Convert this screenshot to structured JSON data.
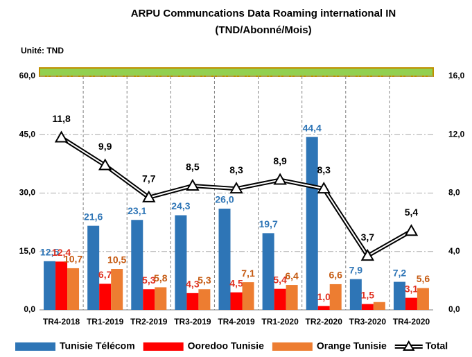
{
  "chart_data": {
    "type": "bar",
    "title": "ARPU Communcations Data  Roaming international IN",
    "subtitle": "(TND/Abonné/Mois)",
    "unit_label": "Unité: TND",
    "categories": [
      "TR4-2018",
      "TR1-2019",
      "TR2-2019",
      "TR3-2019",
      "TR4-2019",
      "TR1-2020",
      "TR2-2020",
      "TR3-2020",
      "TR4-2020"
    ],
    "ylim": [
      0,
      60
    ],
    "yticks": [
      {
        "value": 0,
        "label": "0,0"
      },
      {
        "value": 15,
        "label": "15,0"
      },
      {
        "value": 30,
        "label": "30,0"
      },
      {
        "value": 45,
        "label": "45,0"
      },
      {
        "value": 60,
        "label": "60,0"
      }
    ],
    "y2lim": [
      0,
      16
    ],
    "y2ticks": [
      {
        "value": 0,
        "label": "0,0"
      },
      {
        "value": 4,
        "label": "4,0"
      },
      {
        "value": 8,
        "label": "8,0"
      },
      {
        "value": 12,
        "label": "12,0"
      },
      {
        "value": 16,
        "label": "16,0"
      }
    ],
    "grid": true,
    "series": [
      {
        "name": "Tunisie Télécom",
        "color": "#2e75b6",
        "label_color": "#2e75b6",
        "values": [
          12.5,
          21.6,
          23.1,
          24.3,
          26.0,
          19.7,
          44.4,
          7.9,
          7.2
        ],
        "value_labels": [
          "12,5",
          "21,6",
          "23,1",
          "24,3",
          "26,0",
          "19,7",
          "44,4",
          "7,9",
          "7,2"
        ]
      },
      {
        "name": "Ooredoo Tunisie",
        "color": "#ff0000",
        "label_color": "#e03020",
        "values": [
          12.4,
          6.7,
          5.3,
          4.3,
          4.5,
          5.4,
          1.0,
          1.5,
          3.1
        ],
        "value_labels": [
          "12,4",
          "6,7",
          "5,3",
          "4,3",
          "4,5",
          "5,4",
          "1,0",
          "1,5",
          "3,1"
        ]
      },
      {
        "name": "Orange Tunisie",
        "color": "#ed7d31",
        "label_color": "#c55a11",
        "values": [
          10.7,
          10.5,
          5.8,
          5.3,
          7.1,
          6.4,
          6.6,
          2.0,
          5.6
        ],
        "value_labels": [
          "10,7",
          "10,5",
          "5,8",
          "5,3",
          "7,1",
          "6,4",
          "6,6",
          null,
          "5,6"
        ]
      },
      {
        "name": "Total",
        "type": "line",
        "axis": "y2",
        "color": "#000000",
        "label_color": "#000000",
        "values": [
          11.8,
          9.9,
          7.7,
          8.5,
          8.3,
          8.9,
          8.3,
          3.7,
          5.4
        ],
        "value_labels": [
          "11,8",
          "9,9",
          "7,7",
          "8,5",
          "8,3",
          "8,9",
          "8,3",
          "3,7",
          "5,4"
        ]
      }
    ]
  }
}
